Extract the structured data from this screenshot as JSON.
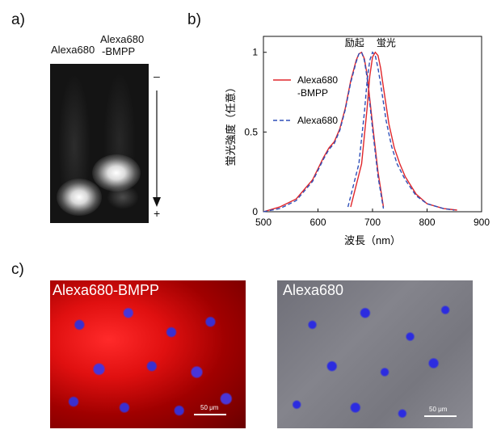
{
  "panels": {
    "a": {
      "label": "a)",
      "lanes": [
        "Alexa680",
        "Alexa680",
        "-BMPP"
      ],
      "minus": "–",
      "plus": "+"
    },
    "b": {
      "label": "b)"
    },
    "c": {
      "label": "c)",
      "images": [
        {
          "label": "Alexa680-BMPP",
          "scale": "50 μm"
        },
        {
          "label": "Alexa680",
          "scale": "50 μm"
        }
      ]
    }
  },
  "colors": {
    "red_curve": "#e0262b",
    "blue_curve": "#2f4fb8",
    "gel_bg": "#141414"
  },
  "chart_data": {
    "type": "line",
    "title": "",
    "xlabel": "波長（nm）",
    "ylabel": "蛍光強度（任意）",
    "xlim": [
      500,
      900
    ],
    "ylim": [
      0,
      1.1
    ],
    "xticks": [
      500,
      600,
      700,
      800,
      900
    ],
    "yticks": [
      0,
      0.5,
      1
    ],
    "ytick_labels": [
      "0",
      "0.5",
      "1"
    ],
    "annotations": [
      "励起",
      "蛍光"
    ],
    "legend": {
      "position": "top-left",
      "entries": [
        "Alexa680",
        "-BMPP",
        "Alexa680"
      ]
    },
    "series": [
      {
        "name": "Alexa680-BMPP excitation",
        "style": "solid",
        "color": "#e0262b",
        "x": [
          500,
          530,
          560,
          590,
          610,
          620,
          630,
          640,
          650,
          660,
          670,
          675,
          680,
          685,
          690,
          700,
          710,
          720
        ],
        "y": [
          0,
          0.03,
          0.08,
          0.2,
          0.34,
          0.4,
          0.44,
          0.52,
          0.65,
          0.82,
          0.95,
          0.99,
          1.0,
          0.96,
          0.86,
          0.55,
          0.25,
          0.03
        ]
      },
      {
        "name": "Alexa680 excitation",
        "style": "dashed",
        "color": "#2f4fb8",
        "x": [
          500,
          530,
          560,
          590,
          610,
          620,
          630,
          640,
          650,
          660,
          670,
          675,
          680,
          685,
          690,
          700,
          710,
          720
        ],
        "y": [
          0,
          0.02,
          0.07,
          0.19,
          0.33,
          0.39,
          0.43,
          0.51,
          0.64,
          0.81,
          0.94,
          0.99,
          1.0,
          0.95,
          0.84,
          0.52,
          0.22,
          0.02
        ]
      },
      {
        "name": "Alexa680-BMPP emission",
        "style": "solid",
        "color": "#e0262b",
        "x": [
          660,
          680,
          690,
          695,
          700,
          705,
          710,
          715,
          720,
          730,
          740,
          750,
          760,
          780,
          800,
          830,
          855
        ],
        "y": [
          0.03,
          0.3,
          0.65,
          0.85,
          0.97,
          1.0,
          0.98,
          0.9,
          0.78,
          0.55,
          0.4,
          0.3,
          0.22,
          0.11,
          0.05,
          0.02,
          0.01
        ]
      },
      {
        "name": "Alexa680 emission",
        "style": "dashed",
        "color": "#2f4fb8",
        "x": [
          655,
          675,
          685,
          690,
          695,
          700,
          705,
          710,
          715,
          725,
          735,
          745,
          760,
          780,
          800,
          830,
          850
        ],
        "y": [
          0.03,
          0.3,
          0.62,
          0.82,
          0.95,
          1.0,
          0.98,
          0.9,
          0.8,
          0.57,
          0.41,
          0.3,
          0.2,
          0.1,
          0.05,
          0.02,
          0.01
        ]
      }
    ]
  }
}
